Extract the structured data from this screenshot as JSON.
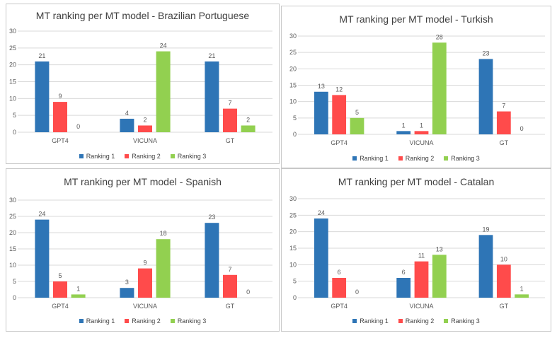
{
  "colors": {
    "ranking_1": "#2e75b6",
    "ranking_2": "#ff4b4b",
    "ranking_3": "#92d050",
    "grid": "#d9d9d9",
    "text": "#595959"
  },
  "chart_data": [
    {
      "type": "bar",
      "title": "MT ranking per MT model - Brazilian Portuguese",
      "categories": [
        "GPT4",
        "VICUNA",
        "GT"
      ],
      "series": [
        {
          "name": "Ranking 1",
          "values": [
            21,
            4,
            21
          ]
        },
        {
          "name": "Ranking 2",
          "values": [
            9,
            2,
            7
          ]
        },
        {
          "name": "Ranking 3",
          "values": [
            0,
            24,
            2
          ]
        }
      ],
      "yticks": [
        "0",
        "5",
        "10",
        "15",
        "20",
        "25",
        "30"
      ],
      "ylim": [
        0,
        30
      ],
      "grid": true,
      "legend": "bottom"
    },
    {
      "type": "bar",
      "title": "MT ranking per MT model - Turkish",
      "categories": [
        "GPT4",
        "VICUNA",
        "GT"
      ],
      "series": [
        {
          "name": "Ranking 1",
          "values": [
            13,
            1,
            23
          ]
        },
        {
          "name": "Ranking 2",
          "values": [
            12,
            1,
            7
          ]
        },
        {
          "name": "Ranking 3",
          "values": [
            5,
            28,
            0
          ]
        }
      ],
      "yticks": [
        "0",
        "5",
        "10",
        "15",
        "20",
        "25",
        "30"
      ],
      "ylim": [
        0,
        30
      ],
      "grid": true,
      "legend": "bottom"
    },
    {
      "type": "bar",
      "title": "MT ranking per MT model - Spanish",
      "categories": [
        "GPT4",
        "VICUNA",
        "GT"
      ],
      "series": [
        {
          "name": "Ranking 1",
          "values": [
            24,
            3,
            23
          ]
        },
        {
          "name": "Ranking 2",
          "values": [
            5,
            9,
            7
          ]
        },
        {
          "name": "Ranking 3",
          "values": [
            1,
            18,
            0
          ]
        }
      ],
      "yticks": [
        "0",
        "5",
        "10",
        "15",
        "20",
        "25",
        "30"
      ],
      "ylim": [
        0,
        30
      ],
      "grid": true,
      "legend": "bottom"
    },
    {
      "type": "bar",
      "title": "MT ranking per MT model - Catalan",
      "categories": [
        "GPT4",
        "VICUNA",
        "GT"
      ],
      "series": [
        {
          "name": "Ranking 1",
          "values": [
            24,
            6,
            19
          ]
        },
        {
          "name": "Ranking 2",
          "values": [
            6,
            11,
            10
          ]
        },
        {
          "name": "Ranking 3",
          "values": [
            0,
            13,
            1
          ]
        }
      ],
      "yticks": [
        "0",
        "5",
        "10",
        "15",
        "20",
        "25",
        "30"
      ],
      "ylim": [
        0,
        30
      ],
      "grid": true,
      "legend": "bottom"
    }
  ]
}
